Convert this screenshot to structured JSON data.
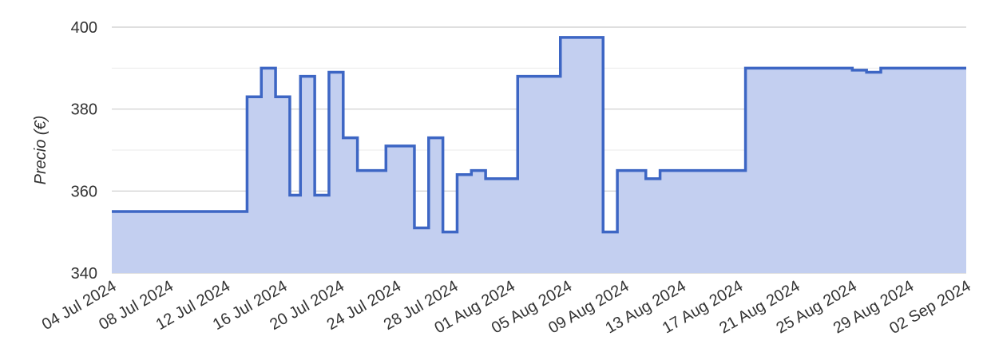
{
  "chart_data": {
    "type": "area",
    "ylabel": "Precio (€)",
    "xlabel": "",
    "title": "",
    "ylim": [
      340,
      400
    ],
    "yticks": [
      340,
      360,
      380,
      400
    ],
    "grid": true,
    "step": "after",
    "x_tick_labels": [
      "04 Jul 2024",
      "08 Jul 2024",
      "12 Jul 2024",
      "16 Jul 2024",
      "20 Jul 2024",
      "24 Jul 2024",
      "28 Jul 2024",
      "01 Aug 2024",
      "05 Aug 2024",
      "09 Aug 2024",
      "13 Aug 2024",
      "17 Aug 2024",
      "21 Aug 2024",
      "25 Aug 2024",
      "29 Aug 2024",
      "02 Sep 2024"
    ],
    "x_tick_dates": [
      "2024-07-04",
      "2024-07-08",
      "2024-07-12",
      "2024-07-16",
      "2024-07-20",
      "2024-07-24",
      "2024-07-28",
      "2024-08-01",
      "2024-08-05",
      "2024-08-09",
      "2024-08-13",
      "2024-08-17",
      "2024-08-21",
      "2024-08-25",
      "2024-08-29",
      "2024-09-02"
    ],
    "xlim": [
      "2024-07-04",
      "2024-09-02"
    ],
    "line_color": "#3d66c4",
    "fill_color": "#c3cff0",
    "series": [
      {
        "x": [
          "2024-07-04",
          "2024-07-13 12:00",
          "2024-07-14 12:00",
          "2024-07-15 12:00",
          "2024-07-16 12:00",
          "2024-07-17 06:00",
          "2024-07-18 06:00",
          "2024-07-19 06:00",
          "2024-07-20 06:00",
          "2024-07-21 06:00",
          "2024-07-23 06:00",
          "2024-07-25 06:00",
          "2024-07-26 06:00",
          "2024-07-27 06:00",
          "2024-07-28 06:00",
          "2024-07-29 06:00",
          "2024-07-30 06:00",
          "2024-07-31 06:00",
          "2024-08-01 12:00",
          "2024-08-04 12:00",
          "2024-08-05 12:00",
          "2024-08-07 12:00",
          "2024-08-08 12:00",
          "2024-08-10 12:00",
          "2024-08-11 12:00",
          "2024-08-17 12:00",
          "2024-08-25",
          "2024-08-26",
          "2024-08-27",
          "2024-09-02"
        ],
        "y": [
          355,
          383,
          390,
          383,
          359,
          388,
          359,
          389,
          373,
          365,
          371,
          351,
          373,
          350,
          364,
          365,
          363,
          363,
          388,
          397.5,
          397.5,
          350,
          365,
          363,
          365,
          390,
          389.5,
          389,
          390,
          390
        ]
      }
    ]
  }
}
